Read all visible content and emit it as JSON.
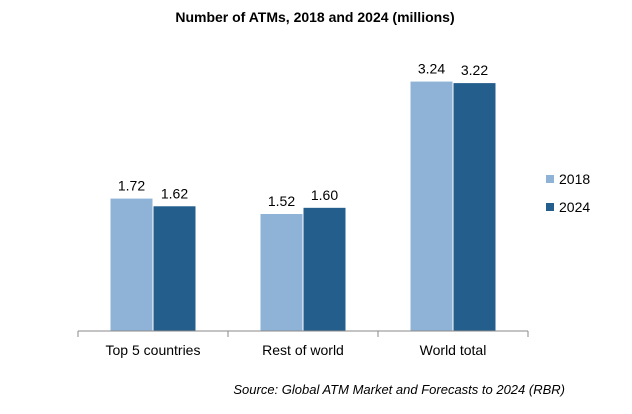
{
  "chart_data": {
    "type": "bar",
    "title": "Number of ATMs, 2018 and 2024 (millions)",
    "categories": [
      "Top 5 countries",
      "Rest of world",
      "World total"
    ],
    "series": [
      {
        "name": "2018",
        "values": [
          1.72,
          1.52,
          3.24
        ],
        "labels": [
          "1.72",
          "1.52",
          "3.24"
        ],
        "color": "#8fb3d6"
      },
      {
        "name": "2024",
        "values": [
          1.62,
          1.6,
          3.22
        ],
        "labels": [
          "1.62",
          "1.60",
          "3.22"
        ],
        "color": "#245e8c"
      }
    ],
    "ylim": [
      0,
      3.65
    ],
    "grid": false,
    "legend": "right",
    "source": "Source: Global ATM Market and Forecasts to 2024 (RBR)"
  }
}
